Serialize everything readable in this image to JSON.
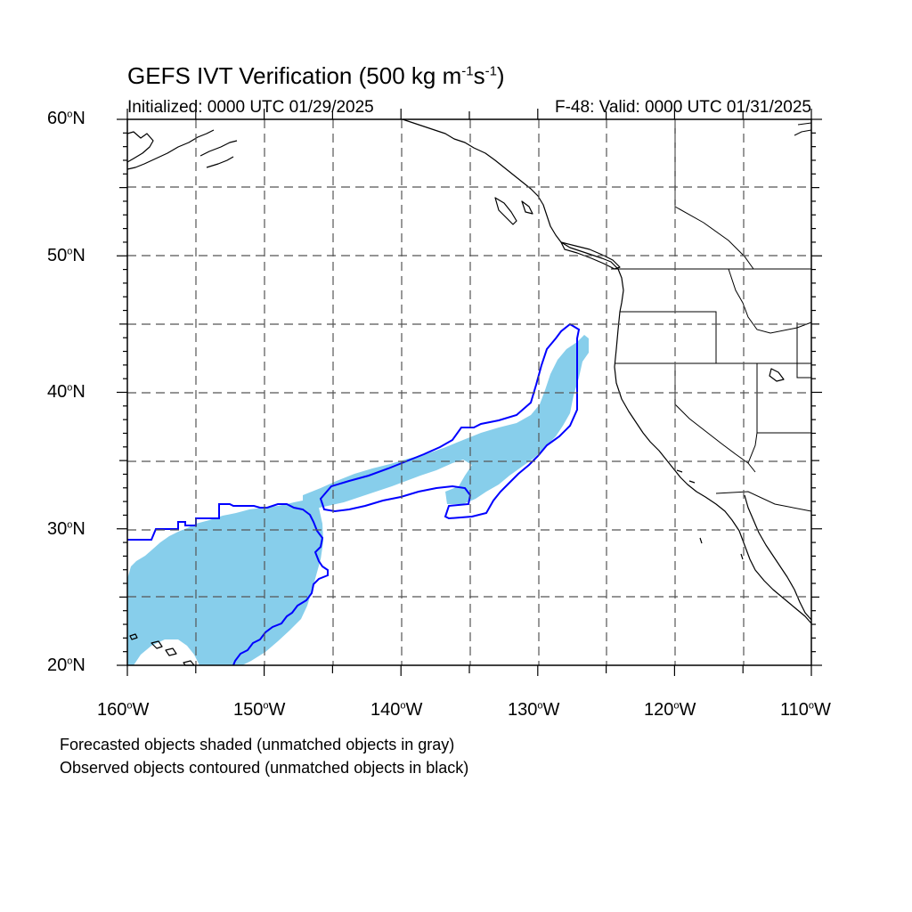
{
  "title": {
    "main": "GEFS IVT Verification (500 kg m",
    "sup1": "-1",
    "mid": "s",
    "sup2": "-1",
    "end": ")"
  },
  "subtitle": {
    "init": "Initialized: 0000 UTC 01/29/2025",
    "valid": "F-48: Valid: 0000 UTC 01/31/2025"
  },
  "lat_labels": [
    "60",
    "50",
    "40",
    "30",
    "20"
  ],
  "lat_suffix": "N",
  "lon_labels": [
    "160",
    "150",
    "140",
    "130",
    "120",
    "110"
  ],
  "lon_suffix": "W",
  "notes": [
    "Forecasted objects shaded (unmatched objects in gray)",
    "Observed objects contoured (unmatched objects in black)"
  ],
  "colors": {
    "forecast_fill": "#87ceeb",
    "observed_contour": "#0000ff",
    "grid": "#555555",
    "coast": "#000000"
  },
  "map": {
    "lon_range": [
      -160,
      -110
    ],
    "lat_range": [
      20,
      60
    ],
    "grid": "dashed every 5 degrees"
  }
}
